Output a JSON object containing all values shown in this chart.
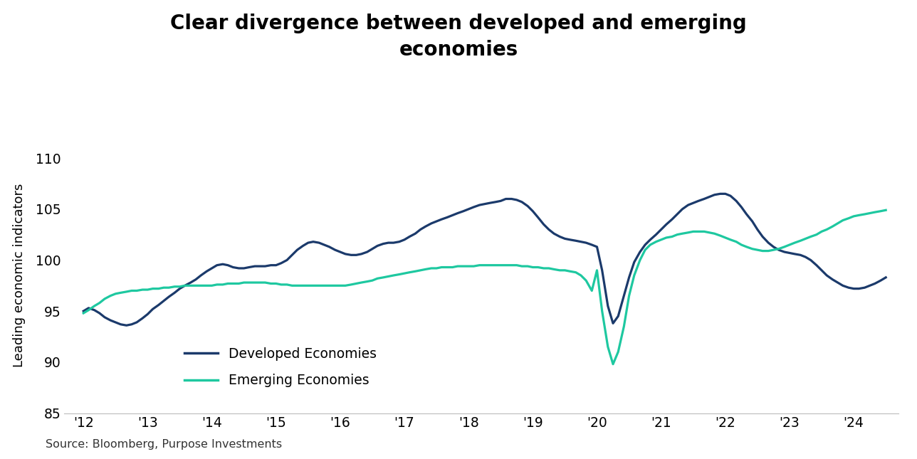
{
  "title": "Clear divergence between developed and emerging\neconomies",
  "ylabel": "Leading economic indicators",
  "source": "Source: Bloomberg, Purpose Investments",
  "ylim": [
    85,
    112
  ],
  "yticks": [
    85,
    90,
    95,
    100,
    105,
    110
  ],
  "background_color": "#ffffff",
  "developed_color": "#1b3a6b",
  "emerging_color": "#1ec8a0",
  "developed_label": "Developed Economies",
  "emerging_label": "Emerging Economies",
  "developed_x": [
    2012.0,
    2012.08,
    2012.17,
    2012.25,
    2012.33,
    2012.42,
    2012.5,
    2012.58,
    2012.67,
    2012.75,
    2012.83,
    2012.92,
    2013.0,
    2013.08,
    2013.17,
    2013.25,
    2013.33,
    2013.42,
    2013.5,
    2013.58,
    2013.67,
    2013.75,
    2013.83,
    2013.92,
    2014.0,
    2014.08,
    2014.17,
    2014.25,
    2014.33,
    2014.42,
    2014.5,
    2014.58,
    2014.67,
    2014.75,
    2014.83,
    2014.92,
    2015.0,
    2015.08,
    2015.17,
    2015.25,
    2015.33,
    2015.42,
    2015.5,
    2015.58,
    2015.67,
    2015.75,
    2015.83,
    2015.92,
    2016.0,
    2016.08,
    2016.17,
    2016.25,
    2016.33,
    2016.42,
    2016.5,
    2016.58,
    2016.67,
    2016.75,
    2016.83,
    2016.92,
    2017.0,
    2017.08,
    2017.17,
    2017.25,
    2017.33,
    2017.42,
    2017.5,
    2017.58,
    2017.67,
    2017.75,
    2017.83,
    2017.92,
    2018.0,
    2018.08,
    2018.17,
    2018.25,
    2018.33,
    2018.42,
    2018.5,
    2018.58,
    2018.67,
    2018.75,
    2018.83,
    2018.92,
    2019.0,
    2019.08,
    2019.17,
    2019.25,
    2019.33,
    2019.42,
    2019.5,
    2019.58,
    2019.67,
    2019.75,
    2019.83,
    2019.92,
    2020.0,
    2020.08,
    2020.17,
    2020.25,
    2020.33,
    2020.42,
    2020.5,
    2020.58,
    2020.67,
    2020.75,
    2020.83,
    2020.92,
    2021.0,
    2021.08,
    2021.17,
    2021.25,
    2021.33,
    2021.42,
    2021.5,
    2021.58,
    2021.67,
    2021.75,
    2021.83,
    2021.92,
    2022.0,
    2022.08,
    2022.17,
    2022.25,
    2022.33,
    2022.42,
    2022.5,
    2022.58,
    2022.67,
    2022.75,
    2022.83,
    2022.92,
    2023.0,
    2023.08,
    2023.17,
    2023.25,
    2023.33,
    2023.42,
    2023.5,
    2023.58,
    2023.67,
    2023.75,
    2023.83,
    2023.92,
    2024.0,
    2024.08,
    2024.17,
    2024.25,
    2024.33,
    2024.42,
    2024.5
  ],
  "developed_y": [
    95.0,
    95.3,
    95.1,
    94.8,
    94.4,
    94.1,
    93.9,
    93.7,
    93.6,
    93.7,
    93.9,
    94.3,
    94.7,
    95.2,
    95.6,
    96.0,
    96.4,
    96.8,
    97.2,
    97.5,
    97.8,
    98.1,
    98.5,
    98.9,
    99.2,
    99.5,
    99.6,
    99.5,
    99.3,
    99.2,
    99.2,
    99.3,
    99.4,
    99.4,
    99.4,
    99.5,
    99.5,
    99.7,
    100.0,
    100.5,
    101.0,
    101.4,
    101.7,
    101.8,
    101.7,
    101.5,
    101.3,
    101.0,
    100.8,
    100.6,
    100.5,
    100.5,
    100.6,
    100.8,
    101.1,
    101.4,
    101.6,
    101.7,
    101.7,
    101.8,
    102.0,
    102.3,
    102.6,
    103.0,
    103.3,
    103.6,
    103.8,
    104.0,
    104.2,
    104.4,
    104.6,
    104.8,
    105.0,
    105.2,
    105.4,
    105.5,
    105.6,
    105.7,
    105.8,
    106.0,
    106.0,
    105.9,
    105.7,
    105.3,
    104.8,
    104.2,
    103.5,
    103.0,
    102.6,
    102.3,
    102.1,
    102.0,
    101.9,
    101.8,
    101.7,
    101.5,
    101.3,
    99.0,
    95.5,
    93.8,
    94.5,
    96.5,
    98.3,
    99.8,
    100.8,
    101.5,
    102.0,
    102.5,
    103.0,
    103.5,
    104.0,
    104.5,
    105.0,
    105.4,
    105.6,
    105.8,
    106.0,
    106.2,
    106.4,
    106.5,
    106.5,
    106.3,
    105.8,
    105.2,
    104.5,
    103.8,
    103.0,
    102.3,
    101.7,
    101.3,
    101.0,
    100.8,
    100.7,
    100.6,
    100.5,
    100.3,
    100.0,
    99.5,
    99.0,
    98.5,
    98.1,
    97.8,
    97.5,
    97.3,
    97.2,
    97.2,
    97.3,
    97.5,
    97.7,
    98.0,
    98.3
  ],
  "emerging_x": [
    2012.0,
    2012.08,
    2012.17,
    2012.25,
    2012.33,
    2012.42,
    2012.5,
    2012.58,
    2012.67,
    2012.75,
    2012.83,
    2012.92,
    2013.0,
    2013.08,
    2013.17,
    2013.25,
    2013.33,
    2013.42,
    2013.5,
    2013.58,
    2013.67,
    2013.75,
    2013.83,
    2013.92,
    2014.0,
    2014.08,
    2014.17,
    2014.25,
    2014.33,
    2014.42,
    2014.5,
    2014.58,
    2014.67,
    2014.75,
    2014.83,
    2014.92,
    2015.0,
    2015.08,
    2015.17,
    2015.25,
    2015.33,
    2015.42,
    2015.5,
    2015.58,
    2015.67,
    2015.75,
    2015.83,
    2015.92,
    2016.0,
    2016.08,
    2016.17,
    2016.25,
    2016.33,
    2016.42,
    2016.5,
    2016.58,
    2016.67,
    2016.75,
    2016.83,
    2016.92,
    2017.0,
    2017.08,
    2017.17,
    2017.25,
    2017.33,
    2017.42,
    2017.5,
    2017.58,
    2017.67,
    2017.75,
    2017.83,
    2017.92,
    2018.0,
    2018.08,
    2018.17,
    2018.25,
    2018.33,
    2018.42,
    2018.5,
    2018.58,
    2018.67,
    2018.75,
    2018.83,
    2018.92,
    2019.0,
    2019.08,
    2019.17,
    2019.25,
    2019.33,
    2019.42,
    2019.5,
    2019.58,
    2019.67,
    2019.75,
    2019.83,
    2019.92,
    2020.0,
    2020.08,
    2020.17,
    2020.25,
    2020.33,
    2020.42,
    2020.5,
    2020.58,
    2020.67,
    2020.75,
    2020.83,
    2020.92,
    2021.0,
    2021.08,
    2021.17,
    2021.25,
    2021.33,
    2021.42,
    2021.5,
    2021.58,
    2021.67,
    2021.75,
    2021.83,
    2021.92,
    2022.0,
    2022.08,
    2022.17,
    2022.25,
    2022.33,
    2022.42,
    2022.5,
    2022.58,
    2022.67,
    2022.75,
    2022.83,
    2022.92,
    2023.0,
    2023.08,
    2023.17,
    2023.25,
    2023.33,
    2023.42,
    2023.5,
    2023.58,
    2023.67,
    2023.75,
    2023.83,
    2023.92,
    2024.0,
    2024.08,
    2024.17,
    2024.25,
    2024.33,
    2024.42,
    2024.5
  ],
  "emerging_y": [
    94.8,
    95.1,
    95.5,
    95.8,
    96.2,
    96.5,
    96.7,
    96.8,
    96.9,
    97.0,
    97.0,
    97.1,
    97.1,
    97.2,
    97.2,
    97.3,
    97.3,
    97.4,
    97.4,
    97.5,
    97.5,
    97.5,
    97.5,
    97.5,
    97.5,
    97.6,
    97.6,
    97.7,
    97.7,
    97.7,
    97.8,
    97.8,
    97.8,
    97.8,
    97.8,
    97.7,
    97.7,
    97.6,
    97.6,
    97.5,
    97.5,
    97.5,
    97.5,
    97.5,
    97.5,
    97.5,
    97.5,
    97.5,
    97.5,
    97.5,
    97.6,
    97.7,
    97.8,
    97.9,
    98.0,
    98.2,
    98.3,
    98.4,
    98.5,
    98.6,
    98.7,
    98.8,
    98.9,
    99.0,
    99.1,
    99.2,
    99.2,
    99.3,
    99.3,
    99.3,
    99.4,
    99.4,
    99.4,
    99.4,
    99.5,
    99.5,
    99.5,
    99.5,
    99.5,
    99.5,
    99.5,
    99.5,
    99.4,
    99.4,
    99.3,
    99.3,
    99.2,
    99.2,
    99.1,
    99.0,
    99.0,
    98.9,
    98.8,
    98.5,
    98.0,
    97.0,
    99.0,
    95.0,
    91.5,
    89.8,
    91.0,
    93.5,
    96.5,
    98.5,
    100.0,
    101.0,
    101.5,
    101.8,
    102.0,
    102.2,
    102.3,
    102.5,
    102.6,
    102.7,
    102.8,
    102.8,
    102.8,
    102.7,
    102.6,
    102.4,
    102.2,
    102.0,
    101.8,
    101.5,
    101.3,
    101.1,
    101.0,
    100.9,
    100.9,
    101.0,
    101.1,
    101.3,
    101.5,
    101.7,
    101.9,
    102.1,
    102.3,
    102.5,
    102.8,
    103.0,
    103.3,
    103.6,
    103.9,
    104.1,
    104.3,
    104.4,
    104.5,
    104.6,
    104.7,
    104.8,
    104.9
  ],
  "xticks": [
    2012,
    2013,
    2014,
    2015,
    2016,
    2017,
    2018,
    2019,
    2020,
    2021,
    2022,
    2023,
    2024
  ],
  "xtick_labels": [
    "'12",
    "'13",
    "'14",
    "'15",
    "'16",
    "'17",
    "'18",
    "'19",
    "'20",
    "'21",
    "'22",
    "'23",
    "'24"
  ],
  "xlim": [
    2011.7,
    2024.7
  ]
}
